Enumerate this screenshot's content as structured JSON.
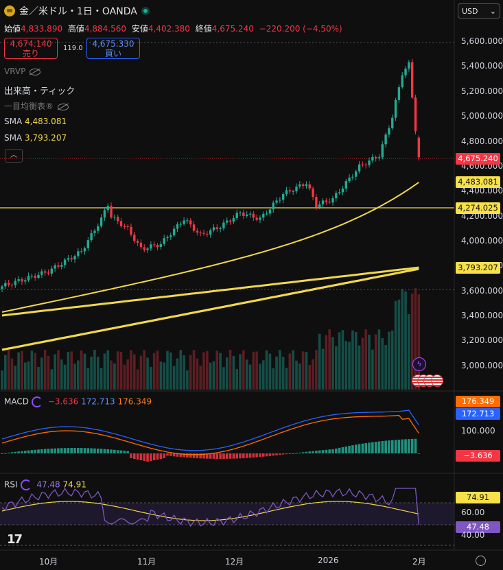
{
  "header": {
    "symbol": "金／米ドル・1日・OANDA",
    "currency": "USD"
  },
  "ohlc": {
    "open_label": "始値",
    "open": "4,833.890",
    "high_label": "高値",
    "high": "4,884.560",
    "low_label": "安値",
    "low": "4,402.380",
    "close_label": "終値",
    "close": "4,675.240",
    "change": "−220.200 (−4.50%)"
  },
  "trade": {
    "sell_price": "4,674.140",
    "sell_label": "売り",
    "spread": "119.0",
    "buy_price": "4,675.330",
    "buy_label": "買い"
  },
  "indicators": {
    "vrvp": "VRVP",
    "volume": "出来高・ティック",
    "ichimoku": "一目均衡表®",
    "sma1_label": "SMA",
    "sma1_value": "4,483.081",
    "sma2_label": "SMA",
    "sma2_value": "3,793.207"
  },
  "collapse_icon": "chevron-up-icon",
  "macd": {
    "label": "MACD",
    "v1": "−3.636",
    "v2": "172.713",
    "v3": "176.349",
    "tag_orange": "176.349",
    "tag_blue": "172.713",
    "tag_red": "−3.636",
    "level": "100.000"
  },
  "rsi": {
    "label": "RSI",
    "v1": "47.48",
    "v2": "74.91",
    "tag_yellow": "74.91",
    "tag_purple": "47.48",
    "level60": "60.00",
    "level40": "40.00"
  },
  "price_axis": [
    "5,600.000",
    "5,400.000",
    "5,200.000",
    "5,000.000",
    "4,800.000",
    "4,600.000",
    "4,400.000",
    "4,200.000",
    "4,000.000",
    "3,800.000",
    "3,600.000",
    "3,400.000",
    "3,200.000",
    "3,000.000"
  ],
  "price_tags": {
    "last": "4,675.240",
    "sma1": "4,483.081",
    "hline": "4,274.025",
    "sma2": "3,793.207"
  },
  "time_axis": [
    "10月",
    "11月",
    "12月",
    "2026",
    "2月"
  ],
  "colors": {
    "up": "#22ab94",
    "down": "#f23645",
    "sma": "#f0d84b",
    "macd": "#2962ff",
    "signal": "#ff6d00",
    "rsi": "#7e57c2",
    "rsi_ma": "#f0d84b"
  },
  "chart_data": {
    "type": "line",
    "series": [
      {
        "name": "SMA",
        "x": [
          "10月",
          "11月",
          "12月",
          "2026",
          "2月"
        ],
        "values": [
          3660,
          3950,
          4180,
          4240,
          4483
        ]
      },
      {
        "name": "SMA",
        "x": [
          "10月",
          "11月",
          "12月",
          "2026",
          "2月"
        ],
        "values": [
          3460,
          3540,
          3630,
          3710,
          3793
        ]
      }
    ],
    "ylim": [
      2900,
      5700
    ]
  }
}
